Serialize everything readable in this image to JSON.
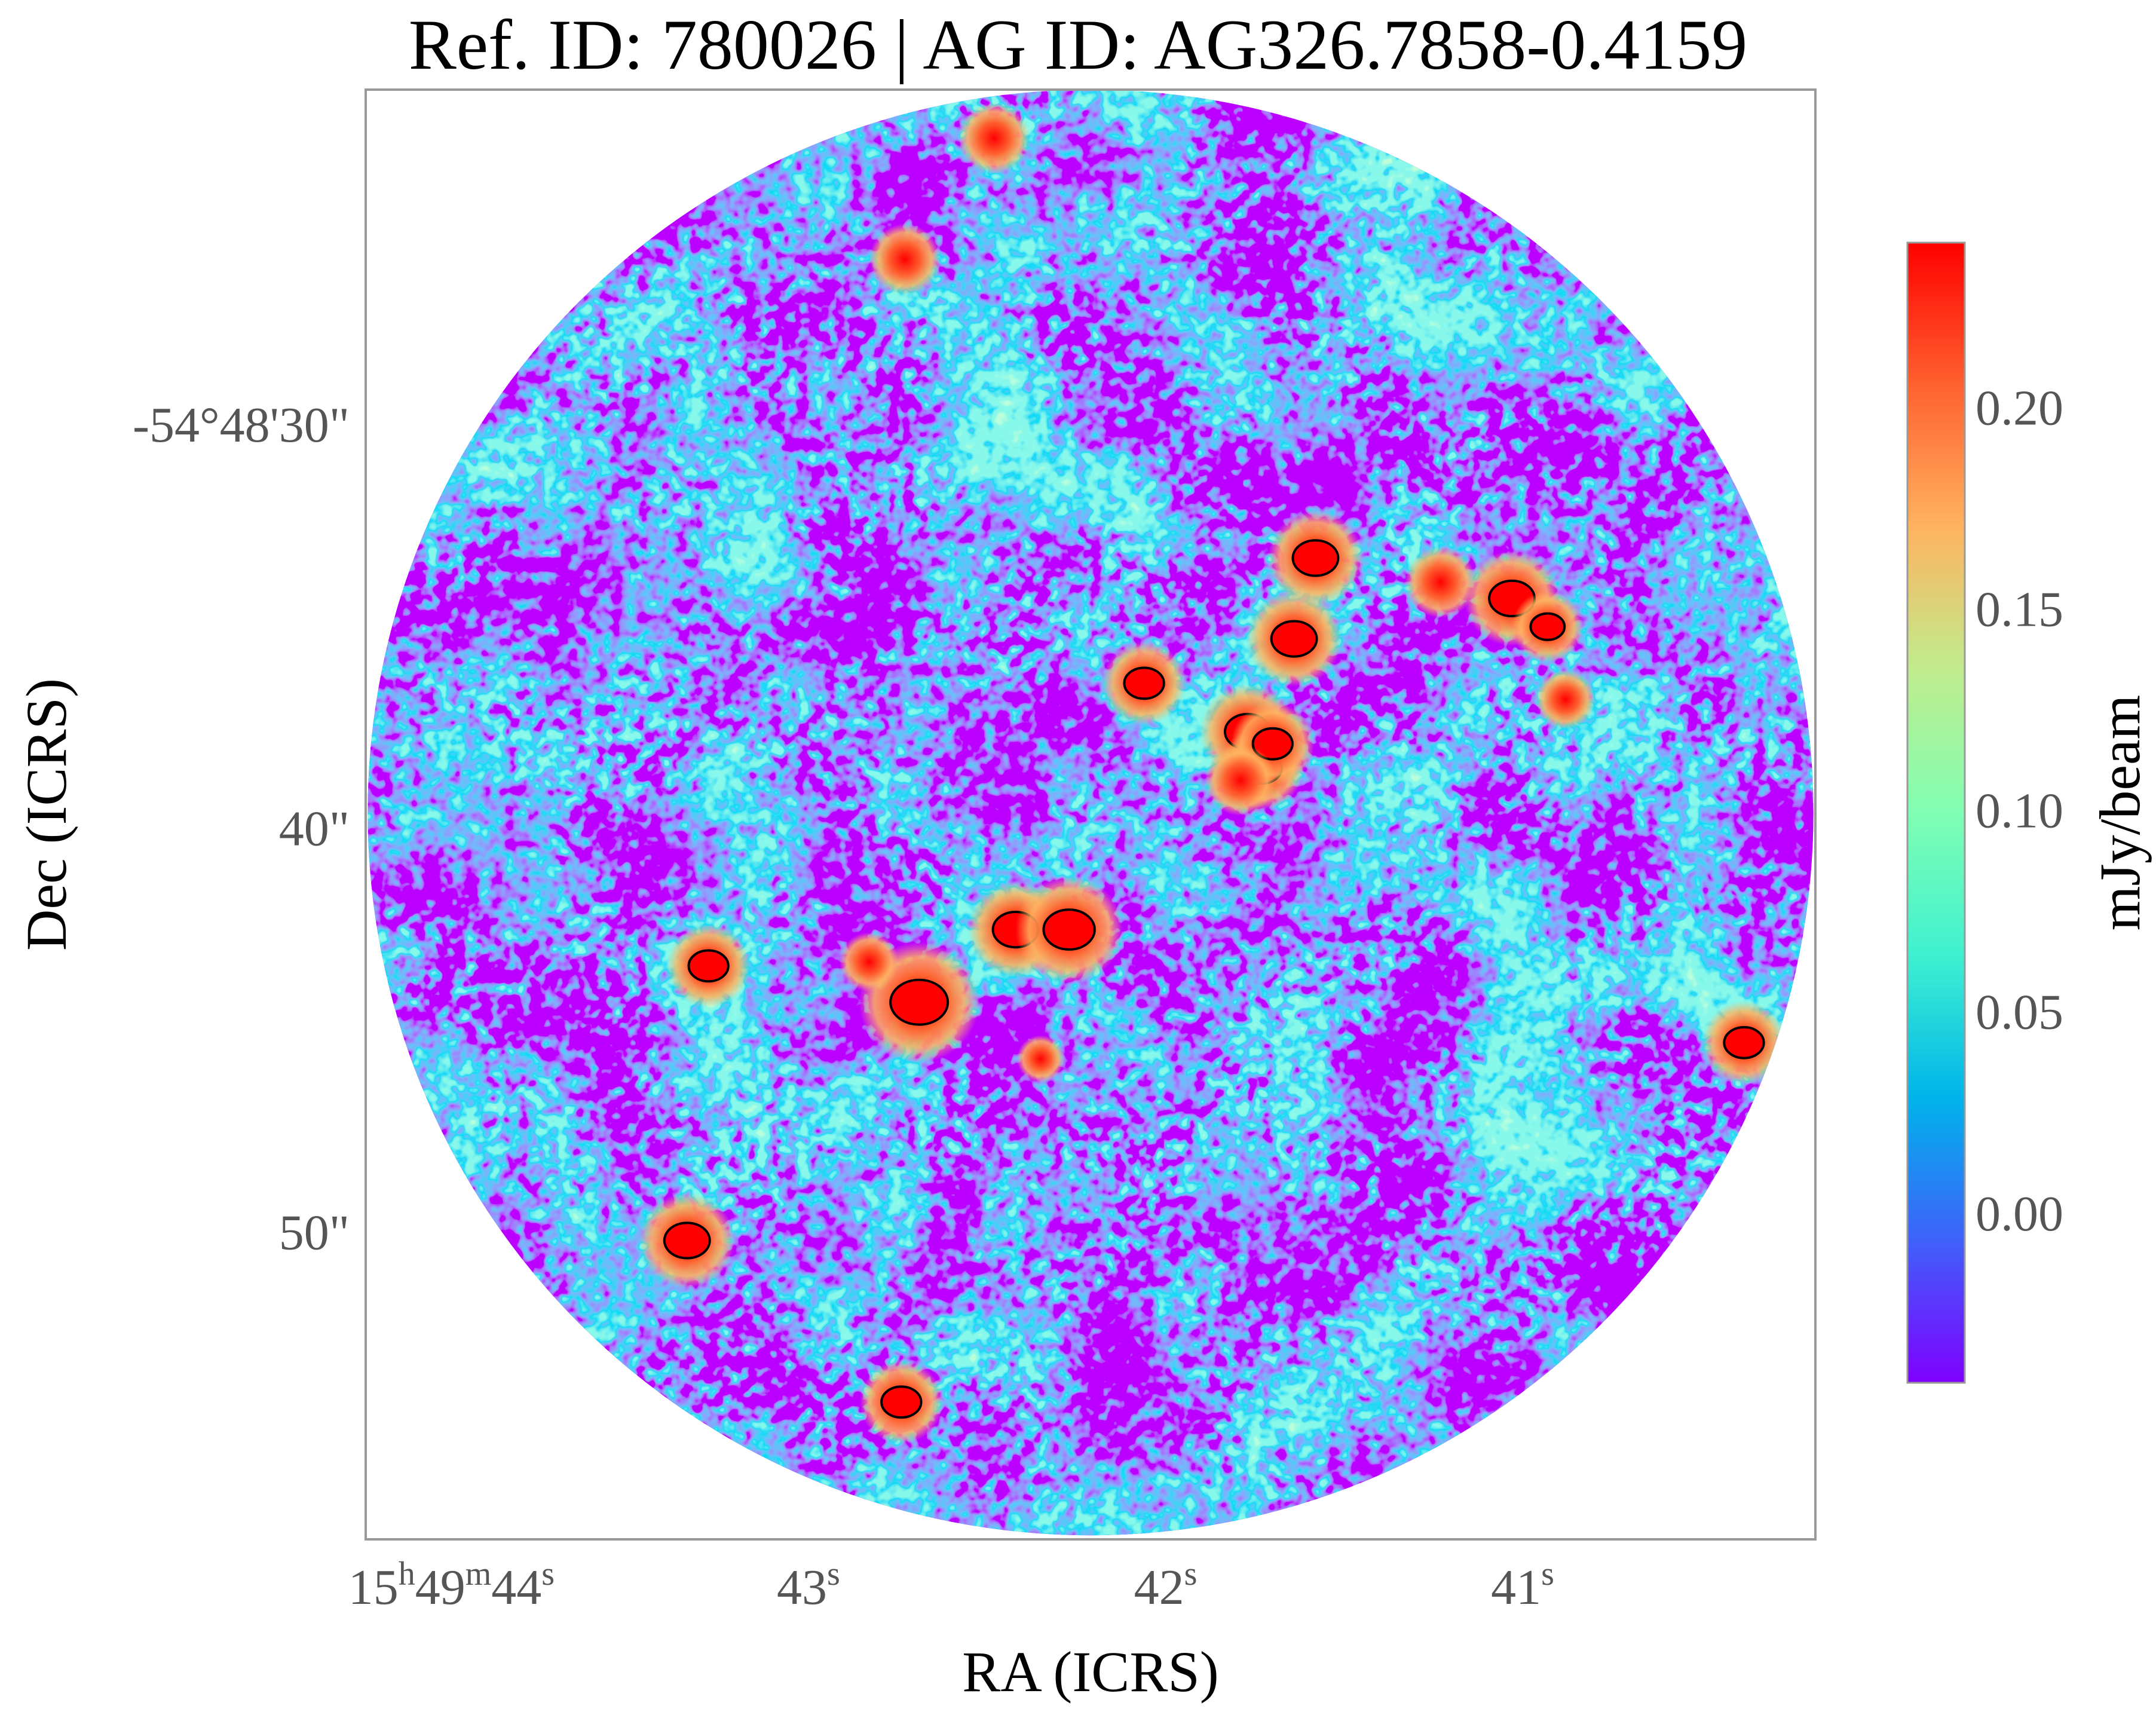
{
  "chart_data": {
    "type": "heatmap",
    "title": "Ref. ID: 780026 | AG ID: AG326.7858-0.4159",
    "xlabel": "RA (ICRS)",
    "ylabel": "Dec (ICRS)",
    "x_ticks": [
      {
        "label": "15h49m44s",
        "parts": [
          "15",
          "h",
          "49",
          "m",
          "44",
          "s"
        ],
        "value_sec": 44
      },
      {
        "label": "43s",
        "parts": [
          "43",
          "s"
        ],
        "value_sec": 43
      },
      {
        "label": "42s",
        "parts": [
          "42",
          "s"
        ],
        "value_sec": 42
      },
      {
        "label": "41s",
        "parts": [
          "41",
          "s"
        ],
        "value_sec": 41
      }
    ],
    "x_range_sec": [
      44.24,
      40.18
    ],
    "y_ticks": [
      {
        "label": "-54°48'30\"",
        "value_arcsec": 30
      },
      {
        "label": "40\"",
        "value_arcsec": 40
      },
      {
        "label": "50\"",
        "value_arcsec": 50
      }
    ],
    "y_range_arcsec": [
      21.7,
      57.6
    ],
    "colorbar": {
      "label": "mJy/beam",
      "range": [
        -0.042,
        0.241
      ],
      "ticks": [
        {
          "label": "0.00",
          "value": 0.0
        },
        {
          "label": "0.05",
          "value": 0.05
        },
        {
          "label": "0.10",
          "value": 0.1
        },
        {
          "label": "0.15",
          "value": 0.15
        },
        {
          "label": "0.20",
          "value": 0.2
        }
      ],
      "colormap": "rainbow",
      "colors": [
        "#7f00ff",
        "#3f61fa",
        "#00b4eb",
        "#3ff1d0",
        "#80feb3",
        "#c0ec8e",
        "#ffb360",
        "#ff6130",
        "#ff0000"
      ]
    },
    "field": {
      "shape": "circle",
      "center_ra_sec": 42.21,
      "center_dec_arcsec": 39.6,
      "radius_arcsec": 17.9,
      "background_color": "#ffffff",
      "outside_color": "#7f00ff"
    },
    "sources": [
      {
        "ra_sec": 42.69,
        "dec_arcsec": 44.3,
        "peak": 0.241,
        "contour": true
      },
      {
        "ra_sec": 42.42,
        "dec_arcsec": 42.5,
        "peak": 0.22,
        "contour": true
      },
      {
        "ra_sec": 42.27,
        "dec_arcsec": 42.5,
        "peak": 0.23,
        "contour": true
      },
      {
        "ra_sec": 41.77,
        "dec_arcsec": 37.6,
        "peak": 0.22,
        "contour": true
      },
      {
        "ra_sec": 41.73,
        "dec_arcsec": 38.5,
        "peak": 0.21,
        "contour": true
      },
      {
        "ra_sec": 41.7,
        "dec_arcsec": 37.9,
        "peak": 0.21,
        "contour": true
      },
      {
        "ra_sec": 41.64,
        "dec_arcsec": 35.3,
        "peak": 0.22,
        "contour": true
      },
      {
        "ra_sec": 42.06,
        "dec_arcsec": 36.4,
        "peak": 0.21,
        "contour": true
      },
      {
        "ra_sec": 41.58,
        "dec_arcsec": 33.3,
        "peak": 0.22,
        "contour": true
      },
      {
        "ra_sec": 41.03,
        "dec_arcsec": 34.3,
        "peak": 0.22,
        "contour": true
      },
      {
        "ra_sec": 40.93,
        "dec_arcsec": 35.0,
        "peak": 0.2,
        "contour": true
      },
      {
        "ra_sec": 41.23,
        "dec_arcsec": 33.9,
        "peak": 0.2,
        "contour": false
      },
      {
        "ra_sec": 43.28,
        "dec_arcsec": 43.4,
        "peak": 0.21,
        "contour": true
      },
      {
        "ra_sec": 43.34,
        "dec_arcsec": 50.2,
        "peak": 0.22,
        "contour": true
      },
      {
        "ra_sec": 42.74,
        "dec_arcsec": 54.2,
        "peak": 0.21,
        "contour": true
      },
      {
        "ra_sec": 40.38,
        "dec_arcsec": 45.3,
        "peak": 0.21,
        "contour": true
      },
      {
        "ra_sec": 42.48,
        "dec_arcsec": 22.9,
        "peak": 0.2,
        "contour": false
      },
      {
        "ra_sec": 42.73,
        "dec_arcsec": 25.9,
        "peak": 0.2,
        "contour": false
      },
      {
        "ra_sec": 42.83,
        "dec_arcsec": 43.3,
        "peak": 0.19,
        "contour": false
      },
      {
        "ra_sec": 42.35,
        "dec_arcsec": 45.7,
        "peak": 0.18,
        "contour": false
      },
      {
        "ra_sec": 41.79,
        "dec_arcsec": 38.8,
        "peak": 0.2,
        "contour": false
      },
      {
        "ra_sec": 40.88,
        "dec_arcsec": 36.8,
        "peak": 0.19,
        "contour": false
      }
    ],
    "grid": false,
    "legend": "colorbar-right"
  }
}
